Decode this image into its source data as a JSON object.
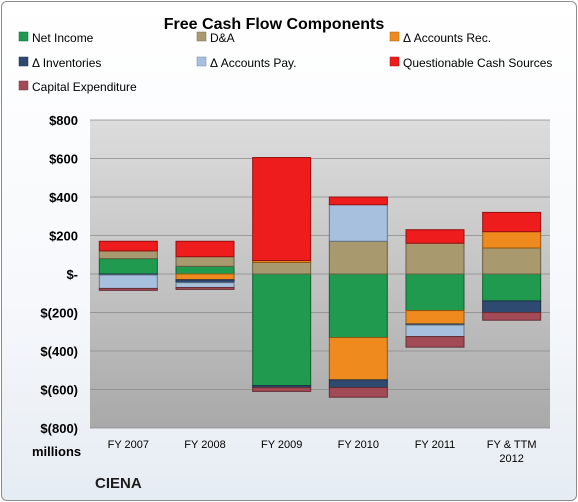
{
  "chart_data": {
    "type": "bar",
    "stacked": true,
    "title": "Free Cash Flow Components",
    "ylabel": "millions",
    "company": "CIENA",
    "ylim": [
      -800,
      800
    ],
    "yticks": [
      800,
      600,
      400,
      200,
      0,
      -200,
      -400,
      -600,
      -800
    ],
    "ytick_labels": [
      "$800",
      "$600",
      "$400",
      "$200",
      "$-",
      "$(200)",
      "$(400)",
      "$(600)",
      "$(800)"
    ],
    "categories": [
      [
        "FY 2007"
      ],
      [
        "FY 2008"
      ],
      [
        "FY 2009"
      ],
      [
        "FY 2010"
      ],
      [
        "FY 2011"
      ],
      [
        "FY & TTM",
        "2012"
      ]
    ],
    "legend_position": "top",
    "series": [
      {
        "name": "Net Income",
        "color": "#1f9a4f",
        "values": [
          80,
          40,
          -580,
          -330,
          -190,
          -140
        ]
      },
      {
        "name": "D&A",
        "color": "#a89a6e",
        "values": [
          40,
          50,
          60,
          170,
          160,
          135
        ]
      },
      {
        "name": "Δ Accounts Rec.",
        "color": "#ee8a1e",
        "values": [
          0,
          -30,
          10,
          -220,
          -70,
          85
        ]
      },
      {
        "name": "Δ Inventories",
        "color": "#2f4a70",
        "values": [
          -5,
          -15,
          -10,
          -40,
          -5,
          -60
        ]
      },
      {
        "name": "Δ Accounts Pay.",
        "color": "#a7c0de",
        "values": [
          -70,
          -25,
          0,
          190,
          -60,
          0
        ]
      },
      {
        "name": "Questionable Cash Sources",
        "color": "#ee1c1c",
        "values": [
          50,
          80,
          535,
          40,
          70,
          100
        ]
      },
      {
        "name": "Capital Expenditure",
        "color": "#a24a55",
        "values": [
          -10,
          -10,
          -20,
          -50,
          -55,
          -40
        ]
      }
    ]
  }
}
